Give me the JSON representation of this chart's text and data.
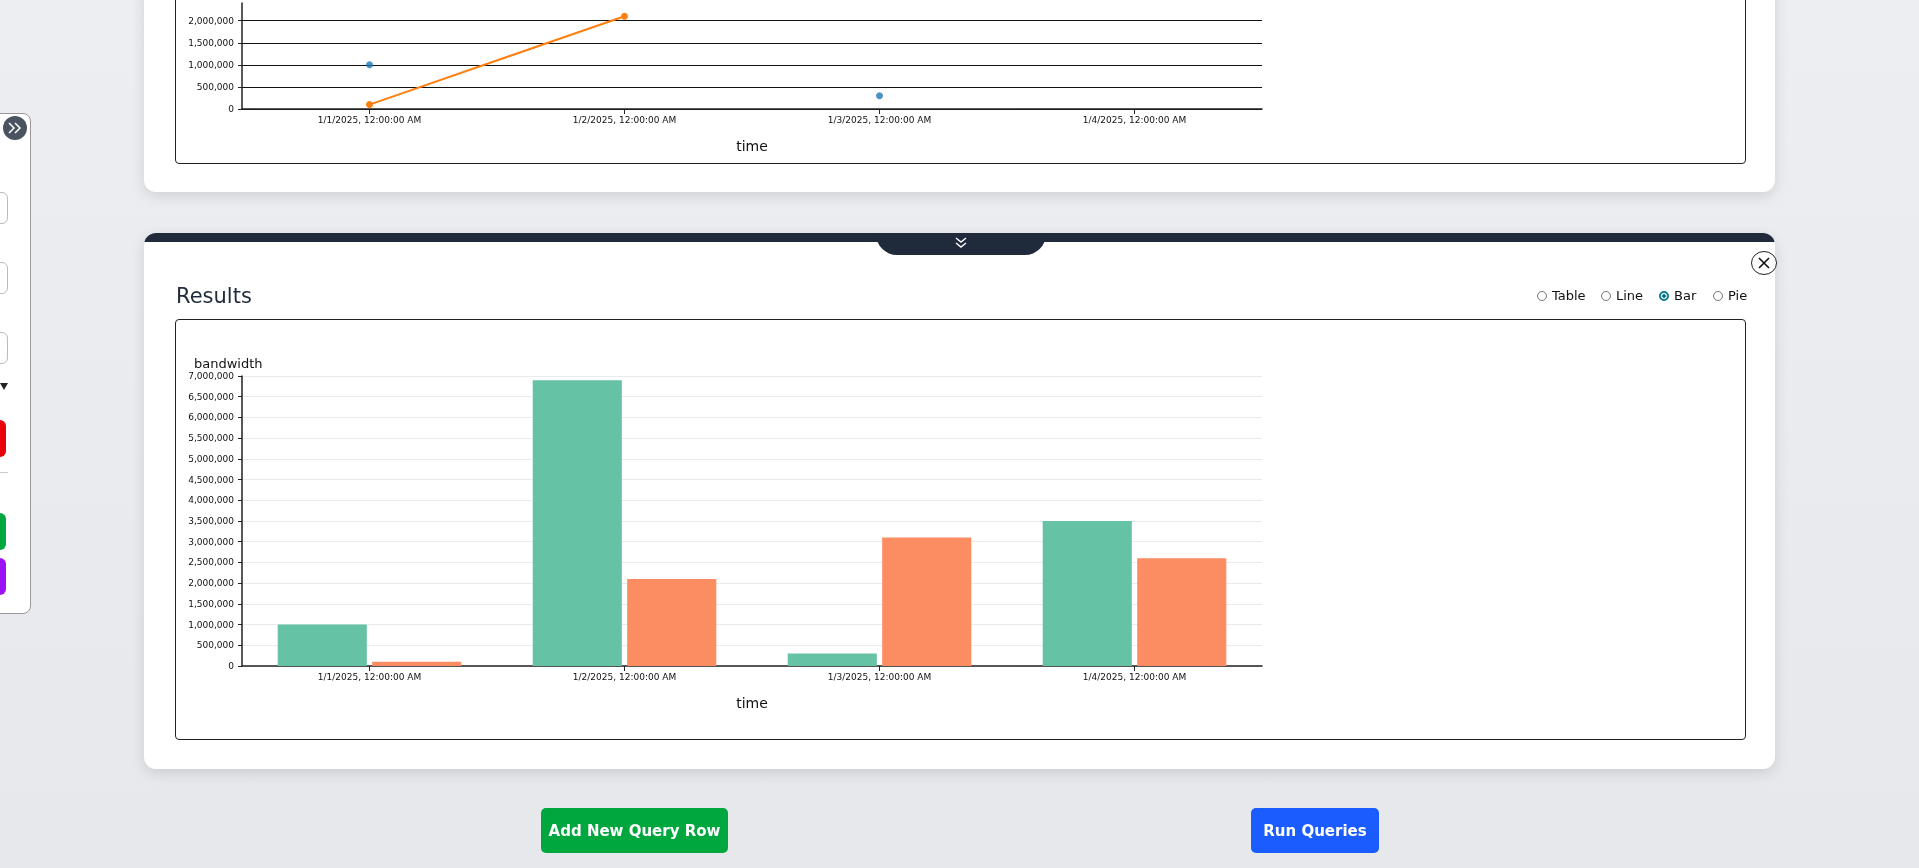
{
  "chart_data": [
    {
      "type": "line",
      "xlabel": "time",
      "categories": [
        "1/1/2025, 12:00:00 AM",
        "1/2/2025, 12:00:00 AM",
        "1/3/2025, 12:00:00 AM",
        "1/4/2025, 12:00:00 AM"
      ],
      "series": [
        {
          "type": "scatter",
          "color": "#1f77b4",
          "values": [
            1000000,
            null,
            300000,
            null
          ]
        },
        {
          "color": "#ff7f0e",
          "values": [
            100000,
            2100000,
            null,
            null
          ]
        }
      ],
      "ylim": [
        0,
        2400000
      ],
      "yticks": [
        {
          "value": 0,
          "label": "0"
        },
        {
          "value": 500000,
          "label": "500,000"
        },
        {
          "value": 1000000,
          "label": "1,000,000"
        },
        {
          "value": 1500000,
          "label": "1,500,000"
        },
        {
          "value": 2000000,
          "label": "2,000,000"
        }
      ],
      "grid": "y",
      "marker": "circle"
    },
    {
      "type": "bar",
      "title": "Results",
      "xlabel": "time",
      "ylabel": "bandwidth",
      "categories": [
        "1/1/2025, 12:00:00 AM",
        "1/2/2025, 12:00:00 AM",
        "1/3/2025, 12:00:00 AM",
        "1/4/2025, 12:00:00 AM"
      ],
      "series": [
        {
          "color": "#66c2a5",
          "values": [
            1000000,
            6900000,
            300000,
            3500000
          ]
        },
        {
          "color": "#fc8d62",
          "values": [
            100000,
            2100000,
            3100000,
            2600000
          ]
        }
      ],
      "ylim": [
        0,
        7000000
      ],
      "yticks": [
        {
          "value": 0,
          "label": "0"
        },
        {
          "value": 500000,
          "label": "500,000"
        },
        {
          "value": 1000000,
          "label": "1,000,000"
        },
        {
          "value": 1500000,
          "label": "1,500,000"
        },
        {
          "value": 2000000,
          "label": "2,000,000"
        },
        {
          "value": 2500000,
          "label": "2,500,000"
        },
        {
          "value": 3000000,
          "label": "3,000,000"
        },
        {
          "value": 3500000,
          "label": "3,500,000"
        },
        {
          "value": 4000000,
          "label": "4,000,000"
        },
        {
          "value": 4500000,
          "label": "4,500,000"
        },
        {
          "value": 5000000,
          "label": "5,000,000"
        },
        {
          "value": 5500000,
          "label": "5,500,000"
        },
        {
          "value": 6000000,
          "label": "6,000,000"
        },
        {
          "value": 6500000,
          "label": "6,500,000"
        },
        {
          "value": 7000000,
          "label": "7,000,000"
        }
      ],
      "grid": "y"
    },
    {
      "type": "other",
      "annotations": [
        "Table",
        "Line",
        "Bar",
        "Pie",
        "Add New Query Row",
        "Run Queries"
      ]
    }
  ]
}
